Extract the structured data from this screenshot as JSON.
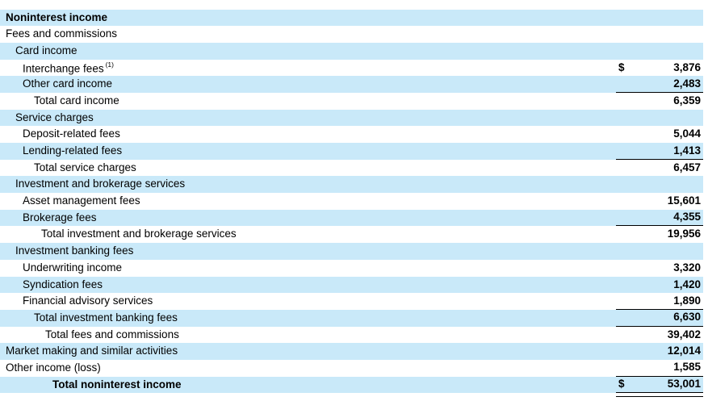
{
  "document": {
    "section_title": "Noninterest income",
    "footnote_marker": "(1)",
    "currency_symbol": "$"
  },
  "colors": {
    "row_shade": "#c9e9f9",
    "text": "#000000",
    "rule": "#000000",
    "background": "#ffffff"
  },
  "table": {
    "rows": [
      {
        "label": "Noninterest income",
        "indent": 0,
        "bold": true,
        "value": "",
        "dollar": "",
        "sup": "",
        "rule": "none"
      },
      {
        "label": "Fees and commissions",
        "indent": 0,
        "bold": false,
        "value": "",
        "dollar": "",
        "sup": "",
        "rule": "none"
      },
      {
        "label": "Card income",
        "indent": 1,
        "bold": false,
        "value": "",
        "dollar": "",
        "sup": "",
        "rule": "none"
      },
      {
        "label": "Interchange fees",
        "indent": 2,
        "bold": false,
        "value": "3,876",
        "dollar": "$",
        "sup": "(1)",
        "rule": "none"
      },
      {
        "label": "Other card income",
        "indent": 2,
        "bold": false,
        "value": "2,483",
        "dollar": "",
        "sup": "",
        "rule": "bottom"
      },
      {
        "label": "Total card income",
        "indent": 3,
        "bold": false,
        "value": "6,359",
        "dollar": "",
        "sup": "",
        "rule": "none"
      },
      {
        "label": "Service charges",
        "indent": 1,
        "bold": false,
        "value": "",
        "dollar": "",
        "sup": "",
        "rule": "none"
      },
      {
        "label": "Deposit-related fees",
        "indent": 2,
        "bold": false,
        "value": "5,044",
        "dollar": "",
        "sup": "",
        "rule": "none"
      },
      {
        "label": "Lending-related fees",
        "indent": 2,
        "bold": false,
        "value": "1,413",
        "dollar": "",
        "sup": "",
        "rule": "bottom"
      },
      {
        "label": "Total service charges",
        "indent": 3,
        "bold": false,
        "value": "6,457",
        "dollar": "",
        "sup": "",
        "rule": "none"
      },
      {
        "label": "Investment and brokerage services",
        "indent": 1,
        "bold": false,
        "value": "",
        "dollar": "",
        "sup": "",
        "rule": "none"
      },
      {
        "label": "Asset management fees",
        "indent": 2,
        "bold": false,
        "value": "15,601",
        "dollar": "",
        "sup": "",
        "rule": "none"
      },
      {
        "label": "Brokerage fees",
        "indent": 2,
        "bold": false,
        "value": "4,355",
        "dollar": "",
        "sup": "",
        "rule": "bottom"
      },
      {
        "label": "Total investment and brokerage services",
        "indent": 4,
        "bold": false,
        "value": "19,956",
        "dollar": "",
        "sup": "",
        "rule": "none"
      },
      {
        "label": "Investment banking fees",
        "indent": 1,
        "bold": false,
        "value": "",
        "dollar": "",
        "sup": "",
        "rule": "none"
      },
      {
        "label": "Underwriting income",
        "indent": 2,
        "bold": false,
        "value": "3,320",
        "dollar": "",
        "sup": "",
        "rule": "none"
      },
      {
        "label": "Syndication fees",
        "indent": 2,
        "bold": false,
        "value": "1,420",
        "dollar": "",
        "sup": "",
        "rule": "none"
      },
      {
        "label": "Financial advisory services",
        "indent": 2,
        "bold": false,
        "value": "1,890",
        "dollar": "",
        "sup": "",
        "rule": "bottom"
      },
      {
        "label": "Total investment banking fees",
        "indent": 3,
        "bold": false,
        "value": "6,630",
        "dollar": "",
        "sup": "",
        "rule": "bottom"
      },
      {
        "label": "Total fees and commissions",
        "indent": 5,
        "bold": false,
        "value": "39,402",
        "dollar": "",
        "sup": "",
        "rule": "none"
      },
      {
        "label": "Market making and similar activities",
        "indent": 0,
        "bold": false,
        "value": "12,014",
        "dollar": "",
        "sup": "",
        "rule": "none"
      },
      {
        "label": "Other income (loss)",
        "indent": 0,
        "bold": false,
        "value": "1,585",
        "dollar": "",
        "sup": "",
        "rule": "bottom"
      },
      {
        "label": "Total noninterest income",
        "indent": 6,
        "bold": true,
        "value": "53,001",
        "dollar": "$",
        "sup": "",
        "rule": "bottom-double"
      }
    ]
  }
}
